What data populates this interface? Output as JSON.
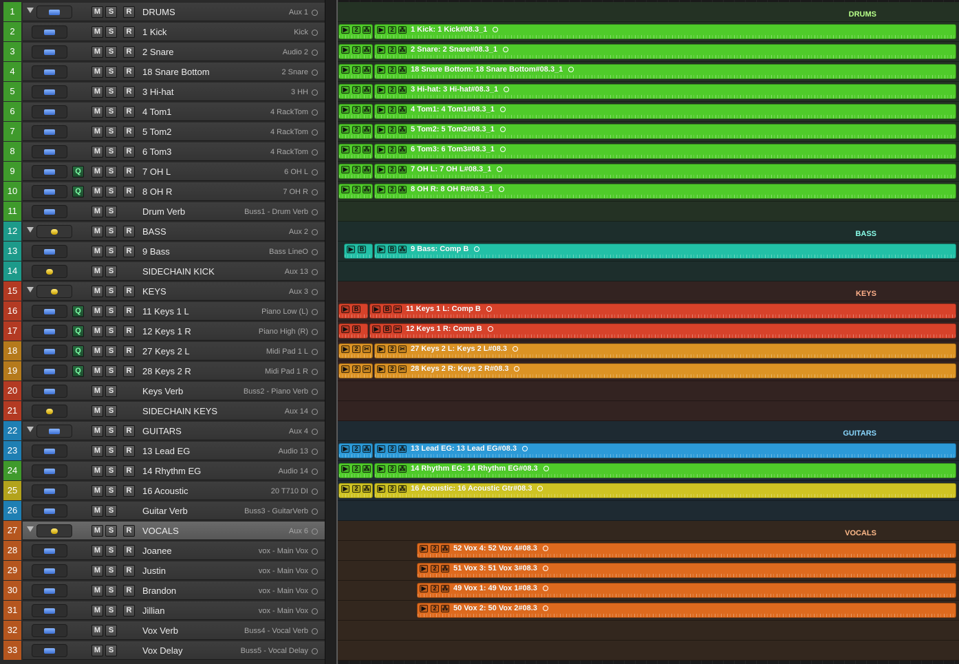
{
  "tracks": [
    {
      "num": "1",
      "name": "DRUMS",
      "output": "Aux 1",
      "folder": true,
      "icon": "blue",
      "num_color": "#3f9a2c",
      "buttons": [
        "M",
        "S",
        "R"
      ],
      "q": false,
      "group": "DRUMS",
      "group_color": "#b8ff8a"
    },
    {
      "num": "2",
      "name": "1 Kick",
      "output": "Kick",
      "folder": false,
      "icon": "blue",
      "num_color": "#3f9a2c",
      "buttons": [
        "M",
        "S",
        "R"
      ],
      "q": false,
      "region": {
        "label": "1 Kick: 1 Kick#08.3_1",
        "color": "#4fcb2a",
        "type": "stereo"
      }
    },
    {
      "num": "3",
      "name": "2 Snare",
      "output": "Audio 2",
      "folder": false,
      "icon": "blue",
      "num_color": "#3f9a2c",
      "buttons": [
        "M",
        "S",
        "R"
      ],
      "q": false,
      "region": {
        "label": "2 Snare: 2 Snare#08.3_1",
        "color": "#4fcb2a",
        "type": "stereo"
      }
    },
    {
      "num": "4",
      "name": "18 Snare Bottom",
      "output": "2 Snare",
      "folder": false,
      "icon": "blue",
      "num_color": "#3f9a2c",
      "buttons": [
        "M",
        "S",
        "R"
      ],
      "q": false,
      "region": {
        "label": "18 Snare Bottom: 18 Snare Bottom#08.3_1",
        "color": "#4fcb2a",
        "type": "stereo"
      }
    },
    {
      "num": "5",
      "name": "3 Hi-hat",
      "output": "3 HH",
      "folder": false,
      "icon": "blue",
      "num_color": "#3f9a2c",
      "buttons": [
        "M",
        "S",
        "R"
      ],
      "q": false,
      "region": {
        "label": "3 Hi-hat: 3 Hi-hat#08.3_1",
        "color": "#4fcb2a",
        "type": "stereo"
      }
    },
    {
      "num": "6",
      "name": "4 Tom1",
      "output": "4 RackTom",
      "folder": false,
      "icon": "blue",
      "num_color": "#3f9a2c",
      "buttons": [
        "M",
        "S",
        "R"
      ],
      "q": false,
      "region": {
        "label": "4 Tom1: 4 Tom1#08.3_1",
        "color": "#4fcb2a",
        "type": "stereo"
      }
    },
    {
      "num": "7",
      "name": "5 Tom2",
      "output": "4 RackTom",
      "folder": false,
      "icon": "blue",
      "num_color": "#3f9a2c",
      "buttons": [
        "M",
        "S",
        "R"
      ],
      "q": false,
      "region": {
        "label": "5 Tom2: 5 Tom2#08.3_1",
        "color": "#4fcb2a",
        "type": "stereo"
      }
    },
    {
      "num": "8",
      "name": "6 Tom3",
      "output": "4 RackTom",
      "folder": false,
      "icon": "blue",
      "num_color": "#3f9a2c",
      "buttons": [
        "M",
        "S",
        "R"
      ],
      "q": false,
      "region": {
        "label": "6 Tom3: 6 Tom3#08.3_1",
        "color": "#4fcb2a",
        "type": "stereo"
      }
    },
    {
      "num": "9",
      "name": "7 OH L",
      "output": "6 OH L",
      "folder": false,
      "icon": "blue",
      "num_color": "#3f9a2c",
      "buttons": [
        "M",
        "S",
        "R"
      ],
      "q": true,
      "region": {
        "label": "7 OH L: 7 OH L#08.3_1",
        "color": "#4fcb2a",
        "type": "stereo"
      }
    },
    {
      "num": "10",
      "name": "8 OH R",
      "output": "7 OH R",
      "folder": false,
      "icon": "blue",
      "num_color": "#3f9a2c",
      "buttons": [
        "M",
        "S",
        "R"
      ],
      "q": true,
      "region": {
        "label": "8 OH R: 8 OH R#08.3_1",
        "color": "#4fcb2a",
        "type": "stereo"
      }
    },
    {
      "num": "11",
      "name": "Drum Verb",
      "output": "Buss1 - Drum Verb",
      "folder": false,
      "icon": "blue",
      "num_color": "#3f9a2c",
      "buttons": [
        "M",
        "S"
      ],
      "q": false
    },
    {
      "num": "12",
      "name": "BASS",
      "output": "Aux 2",
      "folder": true,
      "icon": "yellow",
      "num_color": "#1d9a8a",
      "buttons": [
        "M",
        "S",
        "R"
      ],
      "q": false,
      "group": "BASS",
      "group_color": "#8affea"
    },
    {
      "num": "13",
      "name": "9 Bass",
      "output": "Bass LineO",
      "folder": false,
      "icon": "blue",
      "num_color": "#1d9a8a",
      "buttons": [
        "M",
        "S",
        "R"
      ],
      "q": false,
      "region": {
        "label": "9 Bass: Comp B",
        "color": "#22c0a6",
        "type": "comp",
        "offset": true
      }
    },
    {
      "num": "14",
      "name": "SIDECHAIN KICK",
      "output": "Aux 13",
      "folder": false,
      "icon": "yellow",
      "num_color": "#1d9a8a",
      "buttons": [
        "M",
        "S"
      ],
      "q": false
    },
    {
      "num": "15",
      "name": "KEYS",
      "output": "Aux 3",
      "folder": true,
      "icon": "yellow",
      "num_color": "#b33a23",
      "buttons": [
        "M",
        "S",
        "R"
      ],
      "q": false,
      "group": "KEYS",
      "group_color": "#ffb08a"
    },
    {
      "num": "16",
      "name": "11 Keys 1 L",
      "output": "Piano Low (L)",
      "folder": false,
      "icon": "blue",
      "num_color": "#b33a23",
      "buttons": [
        "M",
        "S",
        "R"
      ],
      "q": true,
      "region": {
        "label": "11 Keys 1 L: Comp B",
        "color": "#d7422a",
        "type": "compcut"
      }
    },
    {
      "num": "17",
      "name": "12 Keys 1 R",
      "output": "Piano High (R)",
      "folder": false,
      "icon": "blue",
      "num_color": "#b33a23",
      "buttons": [
        "M",
        "S",
        "R"
      ],
      "q": true,
      "region": {
        "label": "12 Keys 1 R: Comp B",
        "color": "#d7422a",
        "type": "compcut"
      }
    },
    {
      "num": "18",
      "name": "27 Keys 2 L",
      "output": "Midi Pad 1 L",
      "folder": false,
      "icon": "blue",
      "num_color": "#b57a1c",
      "buttons": [
        "M",
        "S",
        "R"
      ],
      "q": true,
      "region": {
        "label": "27 Keys 2 L: Keys 2 L#08.3",
        "color": "#dc9324",
        "type": "cut"
      }
    },
    {
      "num": "19",
      "name": "28 Keys 2 R",
      "output": "Midi Pad 1 R",
      "folder": false,
      "icon": "blue",
      "num_color": "#b57a1c",
      "buttons": [
        "M",
        "S",
        "R"
      ],
      "q": true,
      "region": {
        "label": "28 Keys 2 R: Keys 2 R#08.3",
        "color": "#dc9324",
        "type": "cut"
      }
    },
    {
      "num": "20",
      "name": "Keys Verb",
      "output": "Buss2 - Piano Verb",
      "folder": false,
      "icon": "blue",
      "num_color": "#b33a23",
      "buttons": [
        "M",
        "S"
      ],
      "q": false
    },
    {
      "num": "21",
      "name": "SIDECHAIN KEYS",
      "output": "Aux 14",
      "folder": false,
      "icon": "yellow",
      "num_color": "#b33a23",
      "buttons": [
        "M",
        "S"
      ],
      "q": false
    },
    {
      "num": "22",
      "name": "GUITARS",
      "output": "Aux 4",
      "folder": true,
      "icon": "blue",
      "num_color": "#1f7fb3",
      "buttons": [
        "M",
        "S",
        "R"
      ],
      "q": false,
      "group": "GUITARS",
      "group_color": "#8ad8ff"
    },
    {
      "num": "23",
      "name": "13 Lead EG",
      "output": "Audio 13",
      "folder": false,
      "icon": "blue",
      "num_color": "#1f7fb3",
      "buttons": [
        "M",
        "S",
        "R"
      ],
      "q": false,
      "region": {
        "label": "13 Lead EG: 13 Lead EG#08.3",
        "color": "#2c9ad8",
        "type": "stereo"
      }
    },
    {
      "num": "24",
      "name": "14 Rhythm EG",
      "output": "Audio 14",
      "folder": false,
      "icon": "blue",
      "num_color": "#3f9a2c",
      "buttons": [
        "M",
        "S",
        "R"
      ],
      "q": false,
      "region": {
        "label": "14 Rhythm EG: 14 Rhythm EG#08.3",
        "color": "#4fcb2a",
        "type": "stereo"
      }
    },
    {
      "num": "25",
      "name": "16 Acoustic",
      "output": "20 T710 DI",
      "folder": false,
      "icon": "blue",
      "num_color": "#b3a31c",
      "buttons": [
        "M",
        "S",
        "R"
      ],
      "q": false,
      "region": {
        "label": "16 Acoustic: 16 Acoustic Gtr#08.3",
        "color": "#cfc423",
        "type": "stereo"
      }
    },
    {
      "num": "26",
      "name": "Guitar Verb",
      "output": "Buss3 - GuitarVerb",
      "folder": false,
      "icon": "blue",
      "num_color": "#1f7fb3",
      "buttons": [
        "M",
        "S"
      ],
      "q": false
    },
    {
      "num": "27",
      "name": "VOCALS",
      "output": "Aux 6",
      "folder": true,
      "selected": true,
      "icon": "yellow",
      "num_color": "#b5561f",
      "buttons": [
        "M",
        "S",
        "R"
      ],
      "q": false,
      "group": "VOCALS",
      "group_color": "#ffba8a"
    },
    {
      "num": "28",
      "name": "Joanee",
      "output": "vox - Main Vox",
      "folder": false,
      "icon": "blue",
      "num_color": "#b5561f",
      "buttons": [
        "M",
        "S",
        "R"
      ],
      "q": false,
      "region": {
        "label": "52 Vox 4: 52 Vox 4#08.3",
        "color": "#de6a1e",
        "type": "vox"
      }
    },
    {
      "num": "29",
      "name": "Justin",
      "output": "vox - Main Vox",
      "folder": false,
      "icon": "blue",
      "num_color": "#b5561f",
      "buttons": [
        "M",
        "S",
        "R"
      ],
      "q": false,
      "region": {
        "label": "51 Vox 3: 51 Vox 3#08.3",
        "color": "#de6a1e",
        "type": "vox"
      }
    },
    {
      "num": "30",
      "name": "Brandon",
      "output": "vox - Main Vox",
      "folder": false,
      "icon": "blue",
      "num_color": "#b5561f",
      "buttons": [
        "M",
        "S",
        "R"
      ],
      "q": false,
      "region": {
        "label": "49 Vox 1: 49 Vox 1#08.3",
        "color": "#de6a1e",
        "type": "vox"
      }
    },
    {
      "num": "31",
      "name": "Jillian",
      "output": "vox - Main Vox",
      "folder": false,
      "icon": "blue",
      "num_color": "#b5561f",
      "buttons": [
        "M",
        "S",
        "R"
      ],
      "q": false,
      "region": {
        "label": "50 Vox 2: 50 Vox 2#08.3",
        "color": "#de6a1e",
        "type": "vox"
      }
    },
    {
      "num": "32",
      "name": "Vox Verb",
      "output": "Buss4 - Vocal Verb",
      "folder": false,
      "icon": "blue",
      "num_color": "#b5561f",
      "buttons": [
        "M",
        "S"
      ],
      "q": false
    },
    {
      "num": "33",
      "name": "Vox Delay",
      "output": "Buss5 - Vocal Delay",
      "folder": false,
      "icon": "blue",
      "num_color": "#b5561f",
      "buttons": [
        "M",
        "S"
      ],
      "q": false
    }
  ],
  "arrange_backgrounds": {
    "DRUMS": "#243224",
    "BASS": "#1d2e2c",
    "KEYS": "#332321",
    "GUITARS": "#1e2a32",
    "VOCALS": "#33271e"
  },
  "region_glyphs": {
    "play": "▶",
    "stereo": "2",
    "comp": "B",
    "cut": "✂",
    "take": "⁂"
  }
}
